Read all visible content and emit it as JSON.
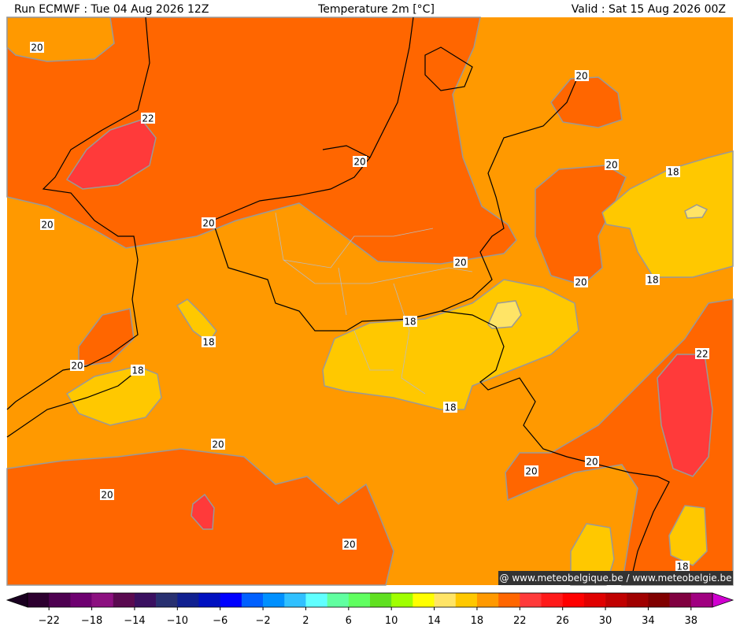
{
  "header": {
    "run": "Run ECMWF : Tue 04 Aug 2026 12Z",
    "title": "Temperature 2m [°C]",
    "valid": "Valid : Sat 15 Aug 2026 00Z"
  },
  "contour_labels": [
    "20",
    "22",
    "20",
    "20",
    "20",
    "18",
    "20",
    "20",
    "20",
    "20",
    "18",
    "18",
    "18",
    "22",
    "20",
    "18",
    "18",
    "20",
    "20",
    "20",
    "20",
    "20",
    "18"
  ],
  "copyright": "@ www.meteobelgique.be / www.meteobelgie.be",
  "colorbar": {
    "colors": [
      "#2d0030",
      "#4d0050",
      "#6e0070",
      "#8c1080",
      "#5a0a50",
      "#3a1060",
      "#283070",
      "#102090",
      "#0010c0",
      "#0000ff",
      "#0060ff",
      "#0090ff",
      "#30c0ff",
      "#60ffff",
      "#60ffa0",
      "#60ff60",
      "#60e020",
      "#a0ff00",
      "#ffff00",
      "#ffe466",
      "#ffc800",
      "#ff9900",
      "#ff6600",
      "#ff3a3a",
      "#ff1a1a",
      "#ff0000",
      "#e00000",
      "#c00000",
      "#a00000",
      "#800000",
      "#800040",
      "#a00080"
    ],
    "labels": [
      "−22",
      "−18",
      "−14",
      "−10",
      "−6",
      "−2",
      "2",
      "6",
      "10",
      "14",
      "18",
      "22",
      "26",
      "30",
      "34",
      "38"
    ]
  }
}
